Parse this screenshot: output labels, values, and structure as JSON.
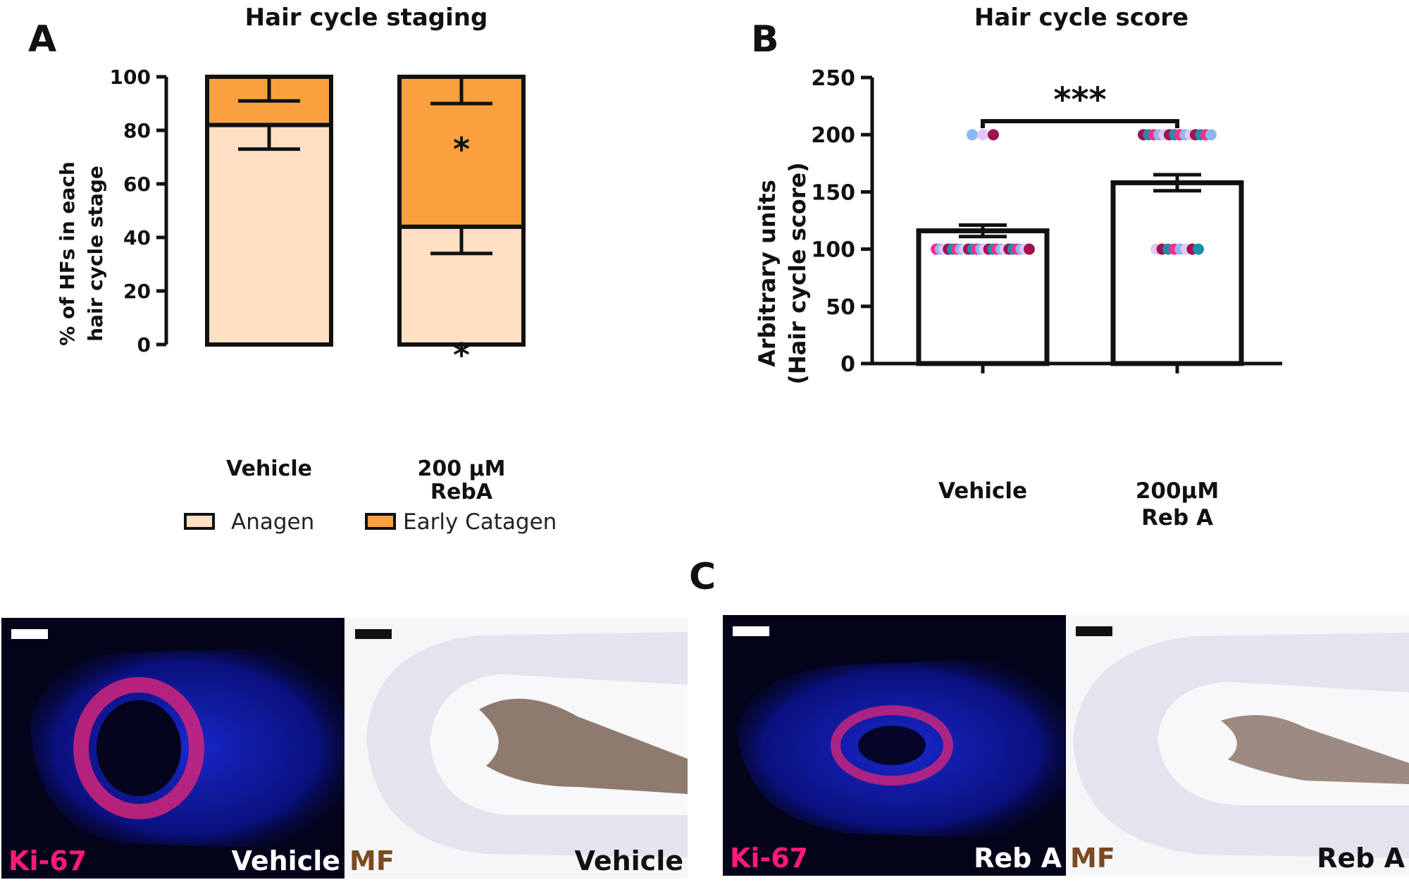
{
  "panel_a": {
    "letter": "A",
    "title": "Hair cycle staging",
    "y_label_line1": "% of HFs in each",
    "y_label_line2": "hair cycle stage",
    "yticks": [
      "0",
      "20",
      "40",
      "60",
      "80",
      "100"
    ],
    "cat1": "Vehicle",
    "cat2_line1": "200 μM",
    "cat2_line2": "RebA",
    "legend": [
      "Anagen",
      "Early Catagen"
    ],
    "sig_top": "*",
    "sig_bottom": "*"
  },
  "panel_b": {
    "letter": "B",
    "title": "Hair cycle score",
    "y_label_line1": "Arbitrary units",
    "y_label_line2": "(Hair cycle score)",
    "yticks": [
      "0",
      "50",
      "100",
      "150",
      "200",
      "250"
    ],
    "cat1": "Vehicle",
    "cat2_line1": "200μM",
    "cat2_line2": "Reb  A",
    "sig": "***"
  },
  "panel_c": {
    "letter": "C",
    "labels": {
      "ki67": "Ki-67",
      "mf": "MF",
      "vehicle": "Vehicle",
      "reba": "Reb A"
    }
  },
  "colors": {
    "anagen": "#fde0c4",
    "early_catagen": "#f9a13f",
    "ki67_text": "#ff1a75",
    "mf_text": "#7a4a1e",
    "dot_pink": "#ff2d8a",
    "dot_blue": "#8ab8f0",
    "dot_teal": "#1a8fa8",
    "dot_lilac": "#e6c6f2",
    "dot_maroon": "#a0124f"
  },
  "chart_data": [
    {
      "type": "bar",
      "stacked": true,
      "title": "Hair cycle staging",
      "ylabel": "% of HFs in each hair cycle stage",
      "categories": [
        "Vehicle",
        "200 μM RebA"
      ],
      "series": [
        {
          "name": "Anagen",
          "values": [
            82,
            44
          ],
          "error": [
            9,
            10
          ]
        },
        {
          "name": "Early Catagen",
          "values": [
            18,
            56
          ],
          "error": [
            9,
            10
          ]
        }
      ],
      "ylim": [
        0,
        100
      ],
      "annotations": [
        "*",
        "*"
      ],
      "legend_position": "bottom"
    },
    {
      "type": "bar",
      "title": "Hair cycle score",
      "ylabel": "Arbitrary units (Hair cycle score)",
      "categories": [
        "Vehicle",
        "200μM Reb  A"
      ],
      "values": [
        116,
        158
      ],
      "error": [
        5,
        7
      ],
      "points": [
        {
          "category": "Vehicle",
          "y": 100,
          "n": 24
        },
        {
          "category": "Vehicle",
          "y": 200,
          "n": 3
        },
        {
          "category": "200μM Reb  A",
          "y": 100,
          "n": 8
        },
        {
          "category": "200μM Reb  A",
          "y": 200,
          "n": 14
        }
      ],
      "ylim": [
        0,
        250
      ],
      "significance": "***"
    }
  ]
}
